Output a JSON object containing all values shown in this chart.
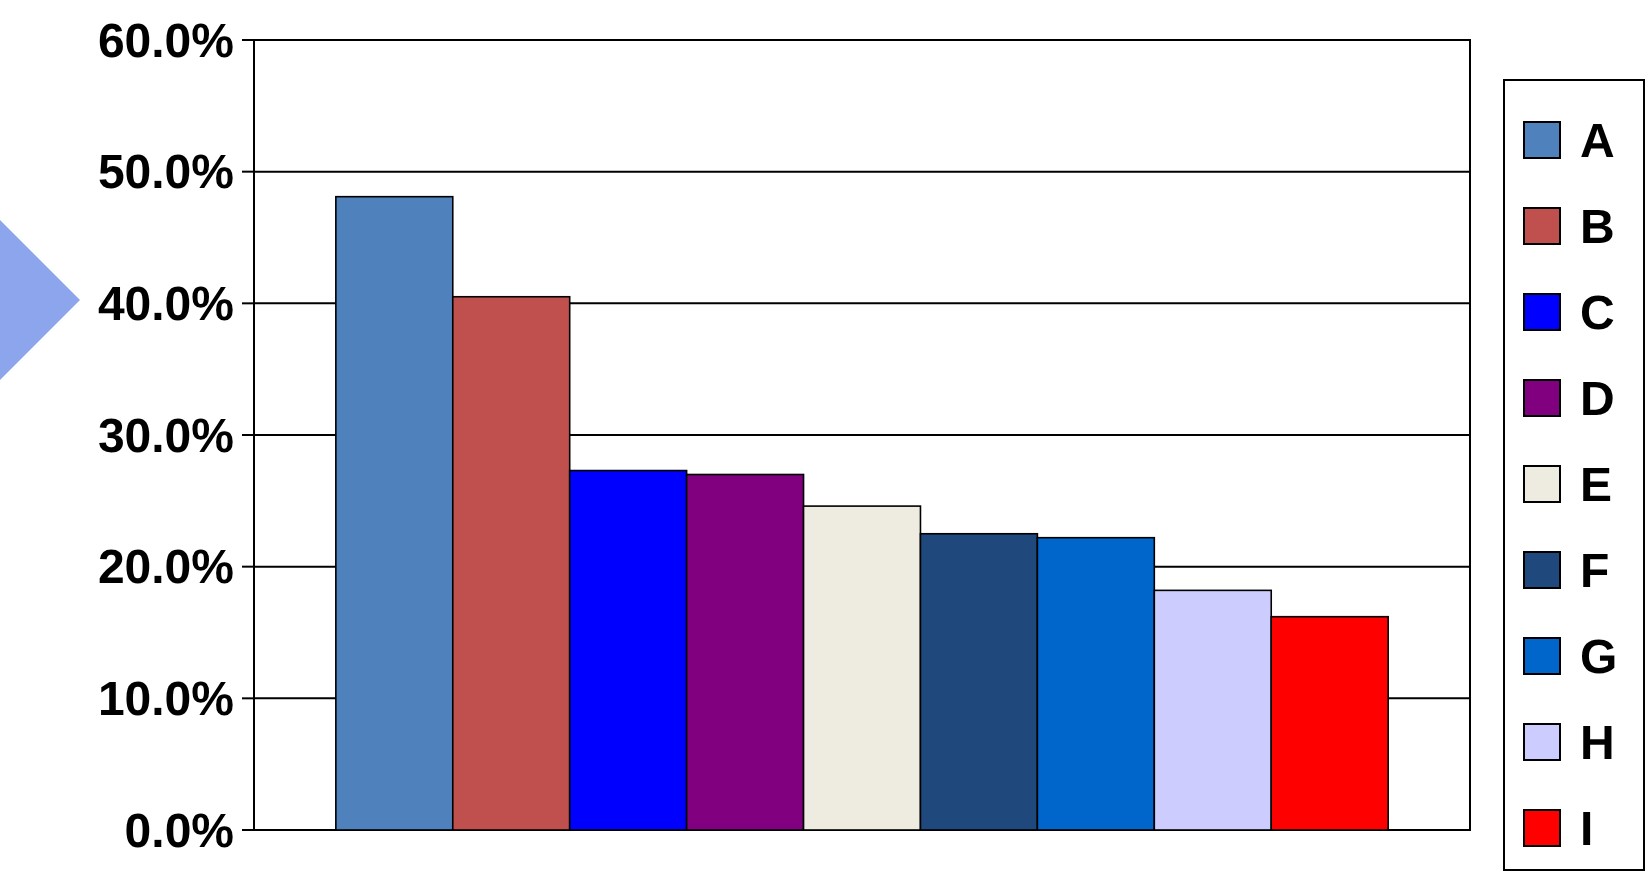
{
  "chart_data": {
    "type": "bar",
    "categories": [
      null
    ],
    "series": [
      {
        "name": "A",
        "color": "#4f81bd",
        "values": [
          48.1
        ]
      },
      {
        "name": "B",
        "color": "#c0504d",
        "values": [
          40.5
        ]
      },
      {
        "name": "C",
        "color": "#0000ff",
        "values": [
          27.3
        ]
      },
      {
        "name": "D",
        "color": "#800080",
        "values": [
          27.0
        ]
      },
      {
        "name": "E",
        "color": "#eeece1",
        "values": [
          24.6
        ]
      },
      {
        "name": "F",
        "color": "#1f497d",
        "values": [
          22.5
        ]
      },
      {
        "name": "G",
        "color": "#0066cc",
        "values": [
          22.2
        ]
      },
      {
        "name": "H",
        "color": "#ccccff",
        "values": [
          18.2
        ]
      },
      {
        "name": "I",
        "color": "#ff0000",
        "values": [
          16.2
        ]
      }
    ],
    "ylim": [
      0,
      60
    ],
    "yticks": [
      {
        "value": 0,
        "label": "0.0%"
      },
      {
        "value": 10,
        "label": "10.0%"
      },
      {
        "value": 20,
        "label": "20.0%"
      },
      {
        "value": 30,
        "label": "30.0%"
      },
      {
        "value": 40,
        "label": "40.0%"
      },
      {
        "value": 50,
        "label": "50.0%"
      },
      {
        "value": 60,
        "label": "60.0%"
      }
    ],
    "grid": "y",
    "legend": "right"
  }
}
